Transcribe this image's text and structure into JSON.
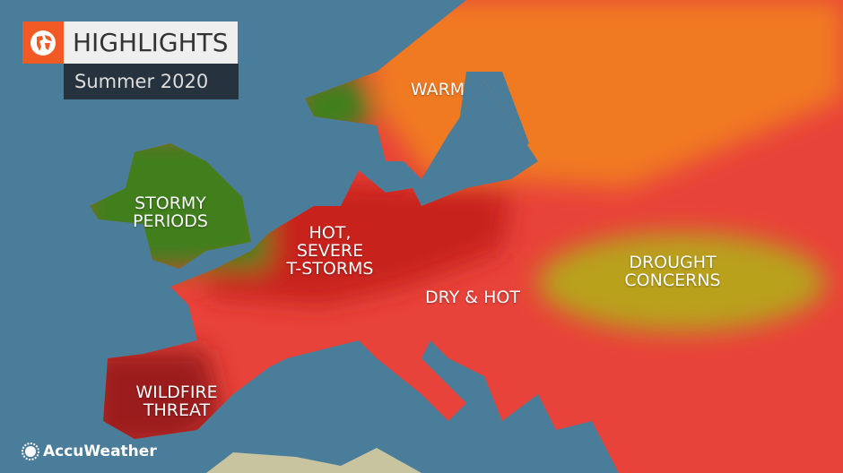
{
  "header": {
    "title": "HIGHLIGHTS",
    "subtitle": "Summer 2020",
    "icon": "globe-icon"
  },
  "brand": {
    "name": "AccuWeather",
    "icon": "sun-icon"
  },
  "colors": {
    "ocean": "#4a7d99",
    "warm": "#f07a22",
    "hot": "#e8433a",
    "hot_severe": "#c8201f",
    "wildfire": "#9b1d1d",
    "stormy": "#3f7f1f",
    "drought": "#b9a11c"
  },
  "labels": [
    {
      "id": "warm",
      "text": "WARM"
    },
    {
      "id": "stormy",
      "lines": [
        "STORMY",
        "PERIODS"
      ]
    },
    {
      "id": "hot",
      "lines": [
        "HOT,",
        "SEVERE",
        "T-STORMS"
      ]
    },
    {
      "id": "dry",
      "text": "DRY & HOT"
    },
    {
      "id": "drought",
      "lines": [
        "DROUGHT",
        "CONCERNS"
      ]
    },
    {
      "id": "wildfire",
      "lines": [
        "WILDFIRE",
        "THREAT"
      ]
    }
  ]
}
